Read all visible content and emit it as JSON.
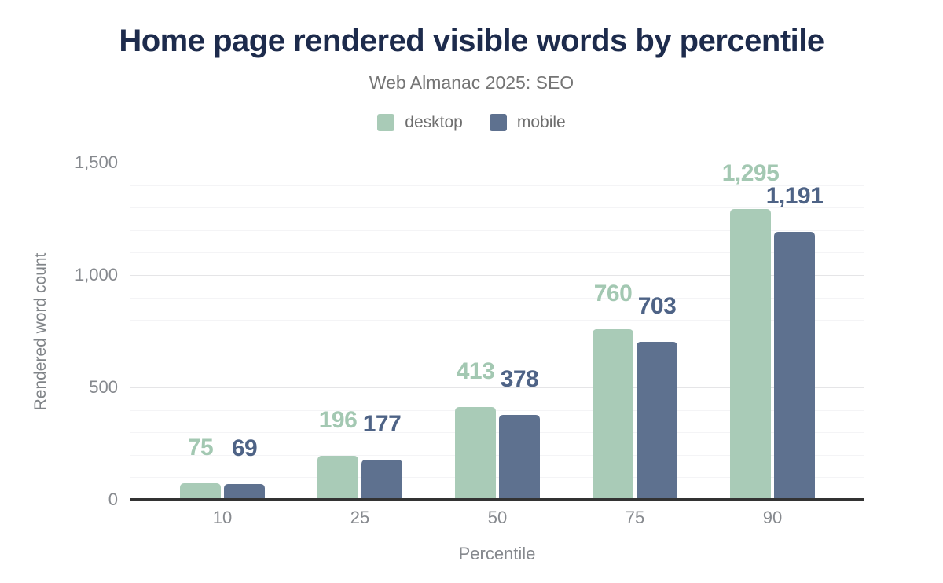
{
  "title": "Home page rendered visible words by percentile",
  "subtitle": "Web Almanac 2025: SEO",
  "legend": [
    {
      "label": "desktop",
      "color": "#a9cbb7"
    },
    {
      "label": "mobile",
      "color": "#5e718f"
    }
  ],
  "colors": {
    "title": "#1d2b4c",
    "subtitle": "#757575",
    "tick_text": "#86898e",
    "axis_title_text": "#808488",
    "axis_line": "#333333",
    "grid_major": "#e5e5e7",
    "grid_minor": "#f4f4f6"
  },
  "chart_data": {
    "type": "bar",
    "title": "Home page rendered visible words by percentile",
    "subtitle": "Web Almanac 2025: SEO",
    "xlabel": "Percentile",
    "ylabel": "Rendered word count",
    "categories": [
      "10",
      "25",
      "50",
      "75",
      "90"
    ],
    "series": [
      {
        "name": "desktop",
        "values": [
          75,
          196,
          413,
          760,
          1295
        ],
        "value_labels": [
          "75",
          "196",
          "413",
          "760",
          "1,295"
        ],
        "color": "#a9cbb7",
        "label_color": "#a3c8b2"
      },
      {
        "name": "mobile",
        "values": [
          69,
          177,
          378,
          703,
          1191
        ],
        "value_labels": [
          "69",
          "177",
          "378",
          "703",
          "1,191"
        ],
        "color": "#5e718f",
        "label_color": "#4e6386"
      }
    ],
    "ylim": [
      0,
      1500
    ],
    "yticks": [
      {
        "value": 0,
        "label": "0"
      },
      {
        "value": 500,
        "label": "500"
      },
      {
        "value": 1000,
        "label": "1,000"
      },
      {
        "value": 1500,
        "label": "1,500"
      }
    ],
    "grid": {
      "minor_step": 100,
      "major_step": 500
    },
    "legend_position": "top"
  }
}
